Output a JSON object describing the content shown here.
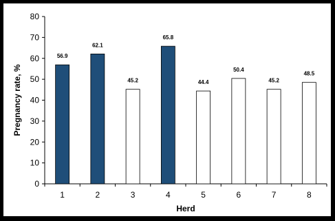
{
  "chart_data": {
    "type": "bar",
    "categories": [
      "1",
      "2",
      "3",
      "4",
      "5",
      "6",
      "7",
      "8"
    ],
    "values": [
      56.9,
      62.1,
      45.2,
      65.8,
      44.4,
      50.4,
      45.2,
      48.5
    ],
    "data_labels": [
      "56.9",
      "62.1",
      "45.2",
      "65.8",
      "44.4",
      "50.4",
      "45.2",
      "48.5"
    ],
    "bar_fill": [
      "#1f4e79",
      "#1f4e79",
      "#ffffff",
      "#1f4e79",
      "#ffffff",
      "#ffffff",
      "#ffffff",
      "#ffffff"
    ],
    "bar_stroke": "#000000",
    "xlabel": "Herd",
    "ylabel": "Pregnancy rate, %",
    "ylim": [
      0,
      80
    ],
    "yticks": [
      0,
      10,
      20,
      30,
      40,
      50,
      60,
      70,
      80
    ],
    "grid": false,
    "legend": "none"
  }
}
